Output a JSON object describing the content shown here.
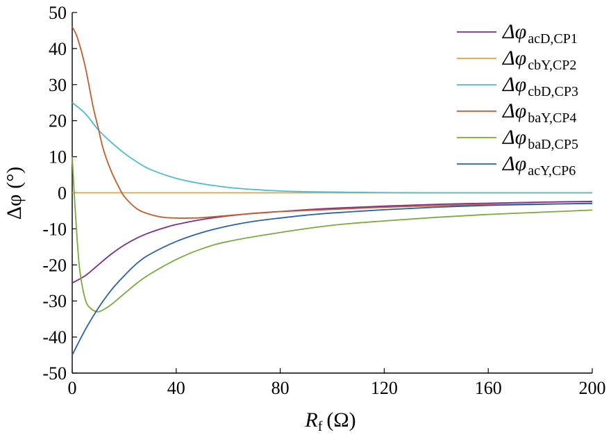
{
  "chart_data": {
    "type": "line",
    "title": "",
    "xlabel": {
      "main": "R",
      "sub": "f",
      "unit": "(Ω)"
    },
    "ylabel": {
      "main": "Δφ",
      "unit": "(°)"
    },
    "xlim": [
      0,
      200
    ],
    "ylim": [
      -50,
      50
    ],
    "x_ticks": [
      "0",
      "40",
      "80",
      "120",
      "160",
      "200"
    ],
    "y_ticks": [
      "-50",
      "-40",
      "-30",
      "-20",
      "-10",
      "0",
      "10",
      "20",
      "30",
      "40",
      "50"
    ],
    "grid": false,
    "legend_position": "top-right",
    "series": [
      {
        "name": "Δφ_acD,CP1",
        "label_main": "Δφ",
        "label_sub": "acD,CP1",
        "color": "#7b2d8e",
        "x": [
          0,
          5,
          10,
          15,
          20,
          25,
          30,
          35,
          40,
          50,
          60,
          70,
          80,
          90,
          100,
          120,
          140,
          160,
          180,
          200
        ],
        "y": [
          -25,
          -23,
          -20,
          -17,
          -14.5,
          -12.5,
          -11,
          -9.8,
          -8.8,
          -7.4,
          -6.4,
          -5.7,
          -5.2,
          -4.7,
          -4.3,
          -3.7,
          -3.2,
          -2.9,
          -2.6,
          -2.4
        ]
      },
      {
        "name": "Δφ_cbY,CP2",
        "label_main": "Δφ",
        "label_sub": "cbY,CP2",
        "color": "#e8a33a",
        "x": [
          0,
          50,
          100,
          150,
          200
        ],
        "y": [
          0,
          0,
          0,
          0,
          0
        ]
      },
      {
        "name": "Δφ_cbD,CP3",
        "label_main": "Δφ",
        "label_sub": "cbD,CP3",
        "color": "#4bbcd4",
        "x": [
          0,
          5,
          10,
          15,
          20,
          25,
          30,
          40,
          50,
          60,
          70,
          80,
          90,
          100,
          120,
          140,
          160,
          180,
          200
        ],
        "y": [
          25,
          22,
          17.5,
          14,
          11,
          8.5,
          6.5,
          4,
          2.5,
          1.5,
          0.9,
          0.5,
          0.3,
          0.2,
          0.05,
          0,
          0,
          0,
          0
        ]
      },
      {
        "name": "Δφ_baY,CP4",
        "label_main": "Δφ",
        "label_sub": "baY,CP4",
        "color": "#c75a2a",
        "x": [
          0,
          2,
          5,
          8,
          10,
          12,
          15,
          18,
          20,
          25,
          30,
          35,
          40,
          45,
          50,
          60,
          70,
          80,
          100,
          120,
          140,
          160,
          180,
          200
        ],
        "y": [
          46,
          43,
          35,
          24,
          18,
          12,
          6,
          1.5,
          -1,
          -4.5,
          -6,
          -6.8,
          -7,
          -7,
          -6.9,
          -6.3,
          -5.7,
          -5.2,
          -4.6,
          -4,
          -3.6,
          -3.3,
          -3.1,
          -3
        ]
      },
      {
        "name": "Δφ_baD,CP5",
        "label_main": "Δφ",
        "label_sub": "baD,CP5",
        "color": "#7aaa3c",
        "x": [
          0,
          1,
          2,
          3,
          5,
          7,
          10,
          13,
          15,
          20,
          25,
          30,
          40,
          50,
          60,
          80,
          100,
          120,
          140,
          160,
          180,
          200
        ],
        "y": [
          10,
          -3,
          -14,
          -22,
          -29.5,
          -32,
          -33,
          -32,
          -31,
          -28,
          -25,
          -22.5,
          -18.5,
          -15.5,
          -13.5,
          -11,
          -9,
          -7.8,
          -6.8,
          -6,
          -5.4,
          -4.8
        ]
      },
      {
        "name": "Δφ_acY,CP6",
        "label_main": "Δφ",
        "label_sub": "acY,CP6",
        "color": "#2563a8",
        "x": [
          0,
          5,
          10,
          15,
          20,
          25,
          30,
          40,
          50,
          60,
          70,
          80,
          90,
          100,
          120,
          140,
          160,
          180,
          200
        ],
        "y": [
          -45,
          -38,
          -32,
          -27,
          -23,
          -19.5,
          -17,
          -13.5,
          -11,
          -9.2,
          -7.9,
          -7,
          -6.2,
          -5.6,
          -4.7,
          -4,
          -3.5,
          -3.2,
          -2.9
        ]
      }
    ]
  }
}
